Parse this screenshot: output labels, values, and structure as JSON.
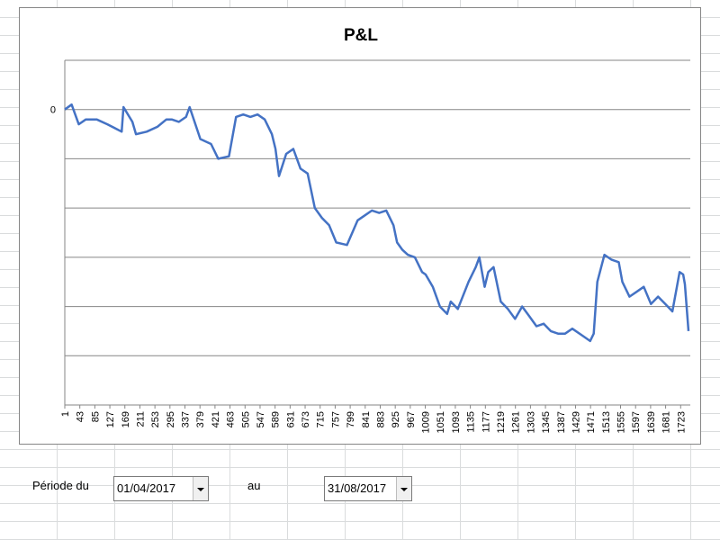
{
  "chart_data": {
    "type": "line",
    "title": "P&L",
    "xlabel": "",
    "ylabel": "",
    "y_tick_labels": [
      "0"
    ],
    "x_tick_labels": [
      "1",
      "43",
      "85",
      "127",
      "169",
      "211",
      "253",
      "295",
      "337",
      "379",
      "421",
      "463",
      "505",
      "547",
      "589",
      "631",
      "673",
      "715",
      "757",
      "799",
      "841",
      "883",
      "925",
      "967",
      "1009",
      "1051",
      "1093",
      "1135",
      "1177",
      "1219",
      "1261",
      "1303",
      "1345",
      "1387",
      "1429",
      "1471",
      "1513",
      "1555",
      "1597",
      "1639",
      "1681",
      "1723"
    ],
    "x_range": [
      1,
      1750
    ],
    "y_range_relative_to_zero": [
      -6,
      1
    ],
    "grid": "horizontal major gridlines",
    "legend": "none",
    "line_color": "#4472c4",
    "series": [
      {
        "x": [
          1,
          20,
          40,
          60,
          90,
          120,
          160,
          165,
          190,
          200,
          230,
          260,
          285,
          300,
          320,
          340,
          350,
          380,
          410,
          430,
          460,
          480,
          500,
          520,
          540,
          560,
          580,
          590,
          600,
          620,
          640,
          660,
          680,
          700,
          720,
          740,
          760,
          790,
          820,
          840,
          860,
          880,
          900,
          920,
          930,
          945,
          960,
          980,
          1000,
          1010,
          1030,
          1050,
          1070,
          1080,
          1100,
          1130,
          1150,
          1160,
          1175,
          1185,
          1200,
          1220,
          1240,
          1260,
          1280,
          1300,
          1320,
          1340,
          1360,
          1380,
          1400,
          1420,
          1450,
          1470,
          1480,
          1490,
          1510,
          1530,
          1550,
          1560,
          1580,
          1600,
          1620,
          1640,
          1660,
          1680,
          1700,
          1710,
          1720,
          1730,
          1735,
          1745
        ],
        "y": [
          0.0,
          0.1,
          -0.3,
          -0.2,
          -0.2,
          -0.3,
          -0.45,
          0.05,
          -0.25,
          -0.5,
          -0.45,
          -0.35,
          -0.2,
          -0.2,
          -0.25,
          -0.15,
          0.05,
          -0.6,
          -0.7,
          -1.0,
          -0.95,
          -0.15,
          -0.1,
          -0.15,
          -0.1,
          -0.2,
          -0.5,
          -0.8,
          -1.35,
          -0.9,
          -0.8,
          -1.2,
          -1.3,
          -2.0,
          -2.2,
          -2.35,
          -2.7,
          -2.75,
          -2.25,
          -2.15,
          -2.05,
          -2.1,
          -2.05,
          -2.35,
          -2.7,
          -2.85,
          -2.95,
          -3.0,
          -3.3,
          -3.35,
          -3.6,
          -4.0,
          -4.15,
          -3.9,
          -4.05,
          -3.5,
          -3.2,
          -3.0,
          -3.6,
          -3.3,
          -3.2,
          -3.9,
          -4.05,
          -4.25,
          -4.0,
          -4.2,
          -4.4,
          -4.35,
          -4.5,
          -4.55,
          -4.55,
          -4.45,
          -4.6,
          -4.7,
          -4.55,
          -3.5,
          -2.95,
          -3.05,
          -3.1,
          -3.5,
          -3.8,
          -3.7,
          -3.6,
          -3.95,
          -3.8,
          -3.95,
          -4.1,
          -3.7,
          -3.3,
          -3.35,
          -3.55,
          -4.5
        ]
      }
    ]
  },
  "controls": {
    "period_label": "Période du",
    "start_date": "01/04/2017",
    "to_label": "au",
    "end_date": "31/08/2017"
  }
}
